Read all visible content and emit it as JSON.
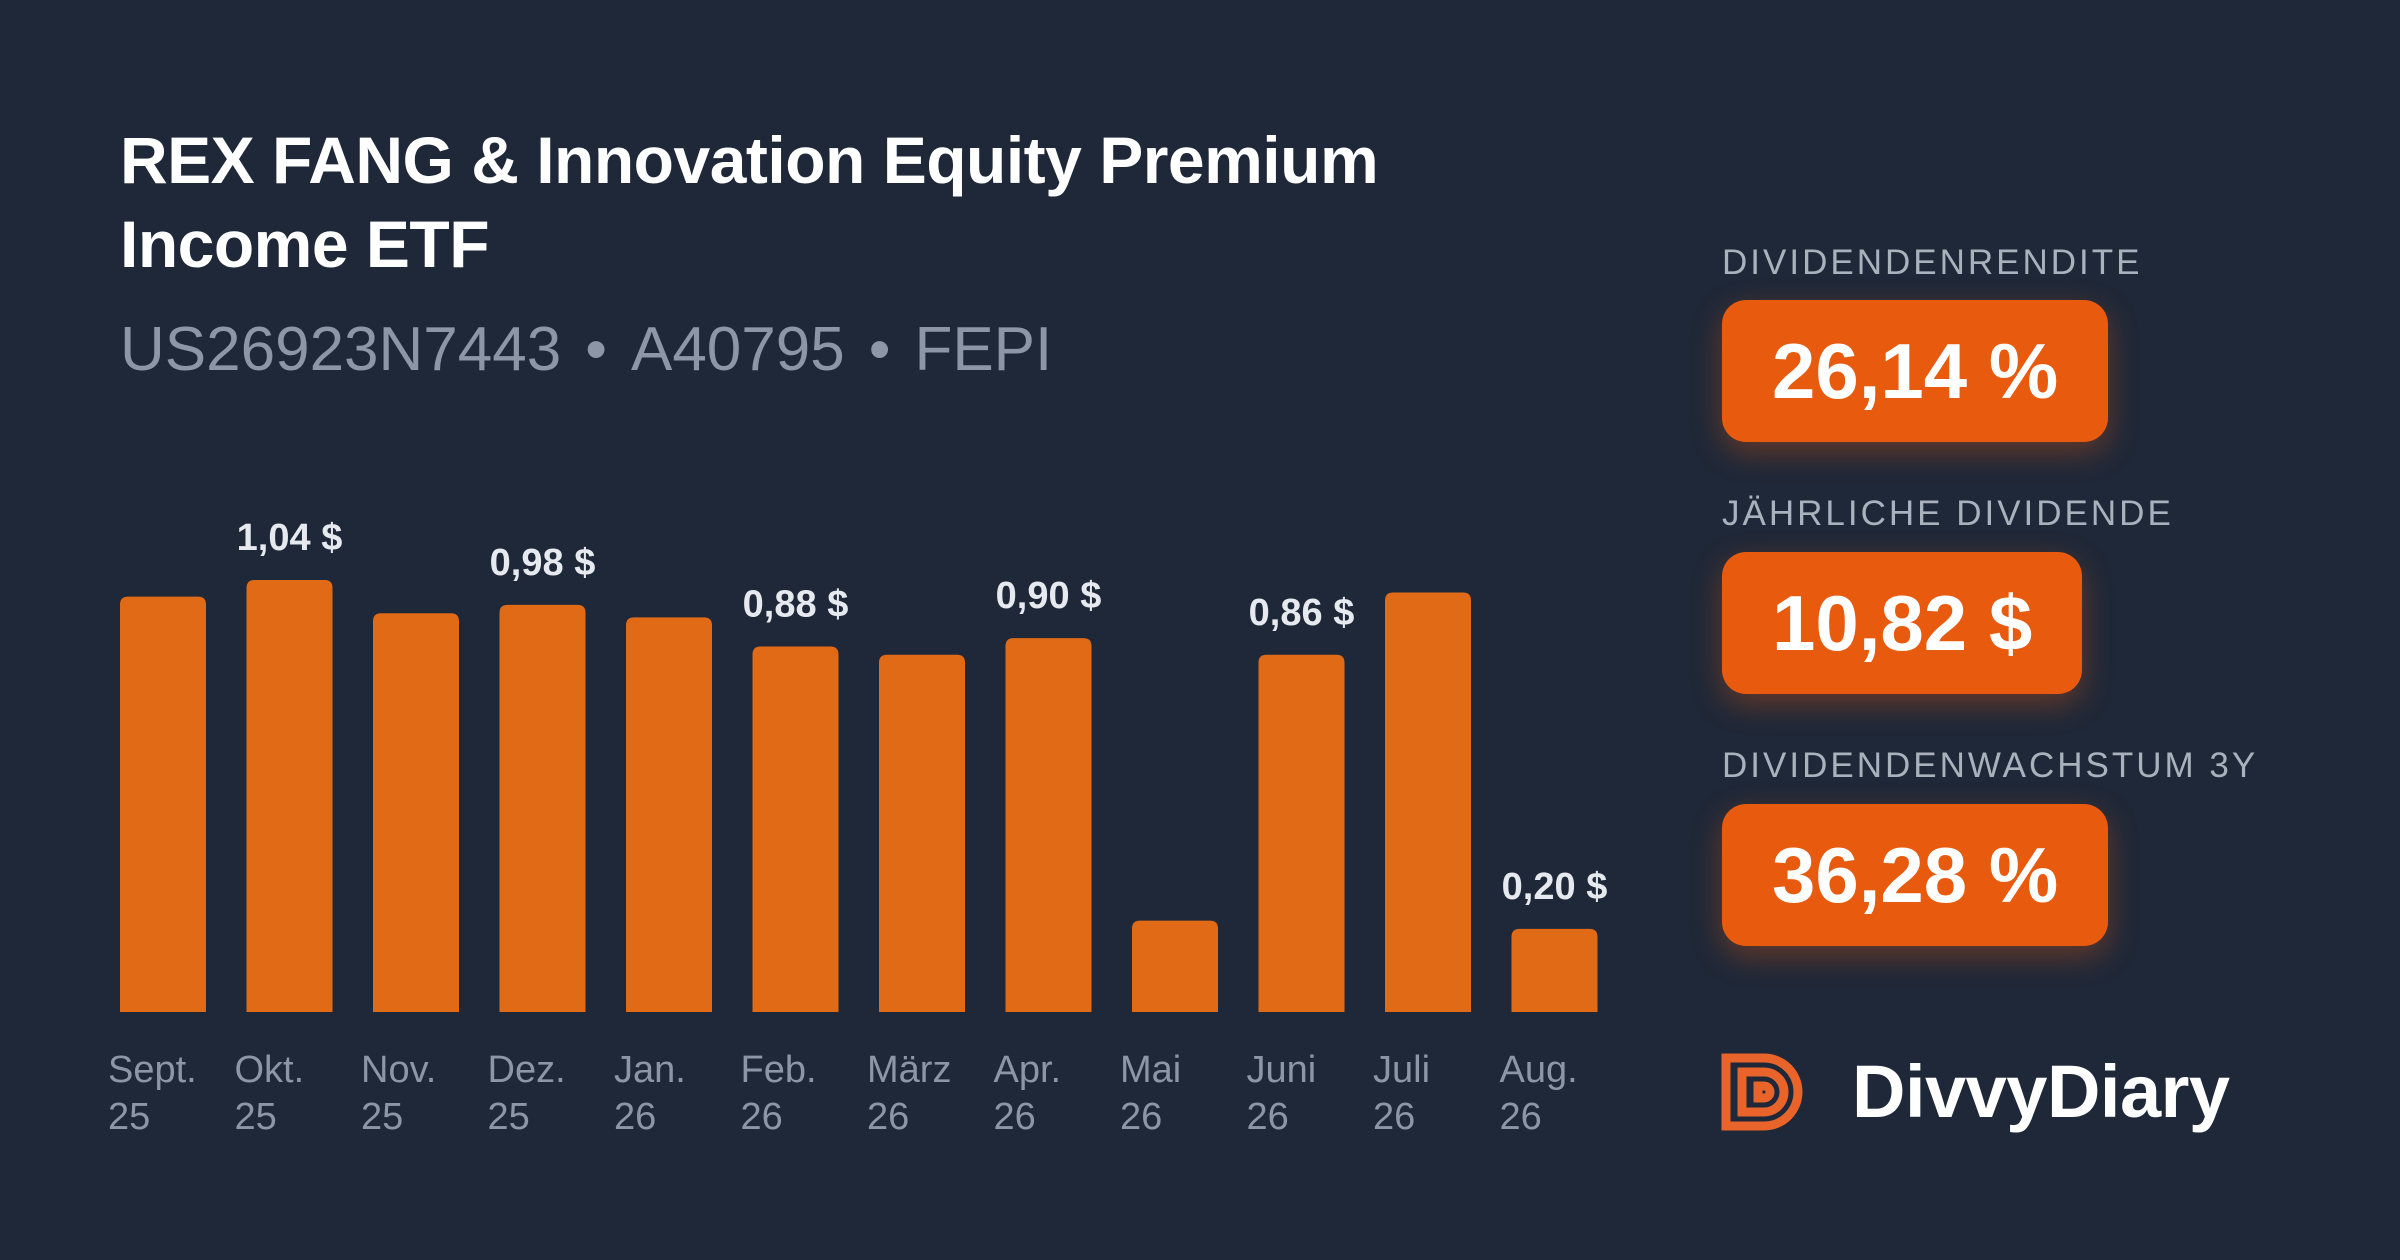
{
  "header": {
    "title": "REX FANG & Innovation Equity Premium Income ETF",
    "isin": "US26923N7443",
    "wkn": "A40795",
    "ticker": "FEPI",
    "separator": "•"
  },
  "metrics": [
    {
      "label": "DIVIDENDENRENDITE",
      "value": "26,14 %"
    },
    {
      "label": "JÄHRLICHE DIVIDENDE",
      "value": "10,82 $"
    },
    {
      "label": "DIVIDENDENWACHSTUM 3Y",
      "value": "36,28 %"
    }
  ],
  "brand": {
    "name": "DivvyDiary"
  },
  "colors": {
    "background": "#1f2838",
    "bar": "#e16a17",
    "accent": "#e85a0e",
    "label": "#e6e9ee",
    "axis_text": "#8c96a6"
  },
  "chart_data": {
    "type": "bar",
    "categories": [
      [
        "Sept.",
        "25"
      ],
      [
        "Okt.",
        "25"
      ],
      [
        "Nov.",
        "25"
      ],
      [
        "Dez.",
        "25"
      ],
      [
        "Jan.",
        "26"
      ],
      [
        "Feb.",
        "26"
      ],
      [
        "März",
        "26"
      ],
      [
        "Apr.",
        "26"
      ],
      [
        "Mai",
        "26"
      ],
      [
        "Juni",
        "26"
      ],
      [
        "Juli",
        "26"
      ],
      [
        "Aug.",
        "26"
      ]
    ],
    "values": [
      1.0,
      1.04,
      0.96,
      0.98,
      0.95,
      0.88,
      0.86,
      0.9,
      0.22,
      0.86,
      1.01,
      0.2
    ],
    "value_labels": [
      "",
      "1,04 $",
      "",
      "0,98 $",
      "",
      "0,88 $",
      "",
      "0,90 $",
      "",
      "0,86 $",
      "",
      "0,20 $"
    ],
    "ylim": [
      0,
      1.04
    ],
    "grid": false,
    "legend": false
  }
}
